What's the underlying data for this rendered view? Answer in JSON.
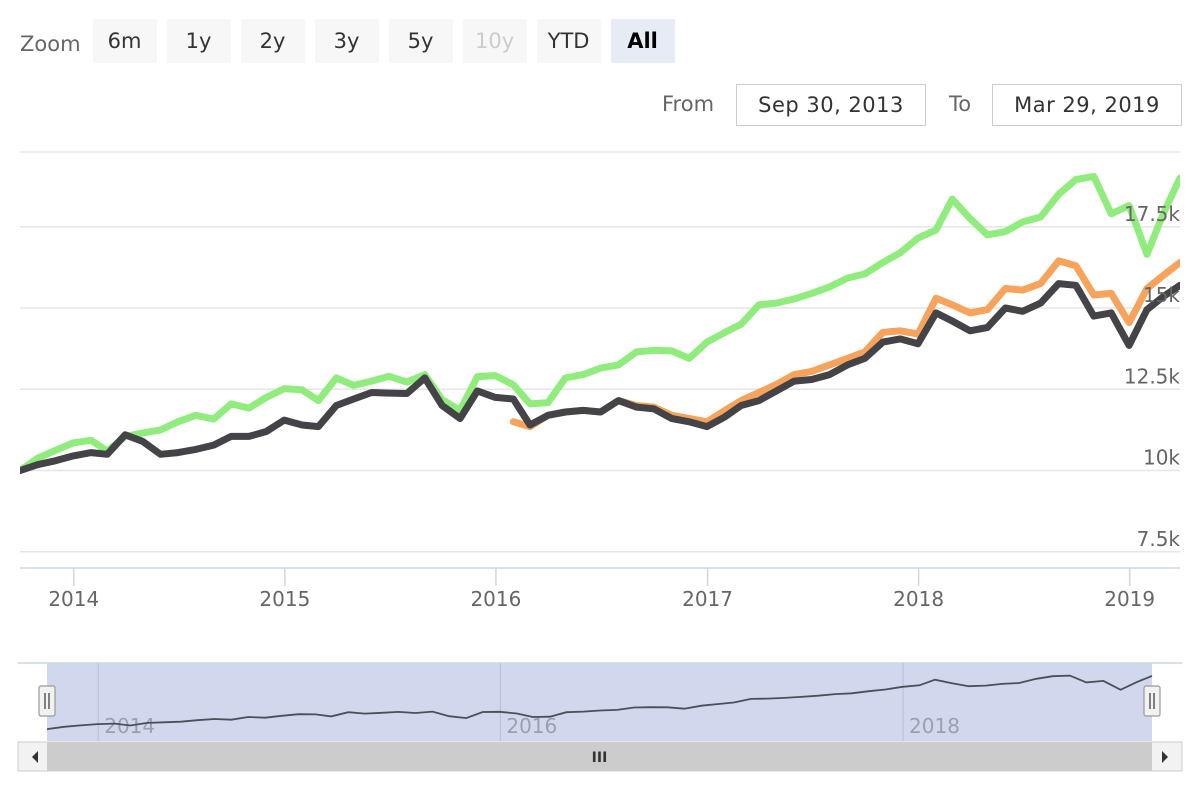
{
  "range_selector": {
    "zoom_label": "Zoom",
    "buttons": [
      {
        "label": "6m",
        "state": "normal"
      },
      {
        "label": "1y",
        "state": "normal"
      },
      {
        "label": "2y",
        "state": "normal"
      },
      {
        "label": "3y",
        "state": "normal"
      },
      {
        "label": "5y",
        "state": "normal"
      },
      {
        "label": "10y",
        "state": "disabled"
      },
      {
        "label": "YTD",
        "state": "normal"
      },
      {
        "label": "All",
        "state": "selected"
      }
    ],
    "from_label": "From",
    "from_value": "Sep 30, 2013",
    "to_label": "To",
    "to_value": "Mar 29, 2019"
  },
  "navigator": {
    "labels": [
      "2014",
      "2016",
      "2018"
    ],
    "scrollbar_grip": "III"
  },
  "colors": {
    "green": "#90ed7d",
    "orange": "#f7a35c",
    "dark": "#434348",
    "grid": "#e6e6e6",
    "axis": "#ccd6eb",
    "nav_mask": "#ccd4eb",
    "nav_line": "#4a4f5a"
  },
  "chart_data": {
    "type": "line",
    "xlim": [
      "2013-09-30",
      "2019-03-29"
    ],
    "ylim": [
      7000,
      19800
    ],
    "y_ticks": [
      {
        "value": 7500,
        "label": "7.5k"
      },
      {
        "value": 10000,
        "label": "10k"
      },
      {
        "value": 12500,
        "label": "12.5k"
      },
      {
        "value": 15000,
        "label": "15k"
      },
      {
        "value": 17500,
        "label": "17.5k"
      }
    ],
    "x_ticks": [
      {
        "date": "2014-01-01",
        "label": "2014"
      },
      {
        "date": "2015-01-01",
        "label": "2015"
      },
      {
        "date": "2016-01-01",
        "label": "2016"
      },
      {
        "date": "2017-01-01",
        "label": "2017"
      },
      {
        "date": "2018-01-01",
        "label": "2018"
      },
      {
        "date": "2019-01-01",
        "label": "2019"
      }
    ],
    "grid": true,
    "series": [
      {
        "color": "#90ed7d",
        "points": [
          [
            "2013-09-30",
            10000
          ],
          [
            "2013-10-31",
            10380
          ],
          [
            "2013-11-30",
            10620
          ],
          [
            "2013-12-31",
            10850
          ],
          [
            "2014-01-31",
            10930
          ],
          [
            "2014-02-28",
            10600
          ],
          [
            "2014-03-31",
            11050
          ],
          [
            "2014-04-30",
            11150
          ],
          [
            "2014-05-31",
            11250
          ],
          [
            "2014-06-30",
            11500
          ],
          [
            "2014-07-31",
            11700
          ],
          [
            "2014-08-31",
            11580
          ],
          [
            "2014-09-30",
            12050
          ],
          [
            "2014-10-31",
            11920
          ],
          [
            "2014-11-30",
            12250
          ],
          [
            "2014-12-31",
            12520
          ],
          [
            "2015-01-31",
            12480
          ],
          [
            "2015-02-28",
            12150
          ],
          [
            "2015-03-31",
            12850
          ],
          [
            "2015-04-30",
            12620
          ],
          [
            "2015-05-31",
            12750
          ],
          [
            "2015-06-30",
            12900
          ],
          [
            "2015-07-31",
            12720
          ],
          [
            "2015-08-31",
            12950
          ],
          [
            "2015-09-30",
            12180
          ],
          [
            "2015-10-31",
            11850
          ],
          [
            "2015-11-30",
            12890
          ],
          [
            "2015-12-31",
            12920
          ],
          [
            "2016-01-31",
            12640
          ],
          [
            "2016-02-29",
            12050
          ],
          [
            "2016-03-31",
            12090
          ],
          [
            "2016-04-30",
            12850
          ],
          [
            "2016-05-31",
            12950
          ],
          [
            "2016-06-30",
            13150
          ],
          [
            "2016-07-31",
            13250
          ],
          [
            "2016-08-31",
            13650
          ],
          [
            "2016-09-30",
            13700
          ],
          [
            "2016-10-31",
            13680
          ],
          [
            "2016-11-30",
            13450
          ],
          [
            "2016-12-31",
            13950
          ],
          [
            "2017-01-31",
            14250
          ],
          [
            "2017-02-28",
            14500
          ],
          [
            "2017-03-31",
            15100
          ],
          [
            "2017-04-30",
            15150
          ],
          [
            "2017-05-31",
            15280
          ],
          [
            "2017-06-30",
            15450
          ],
          [
            "2017-07-31",
            15650
          ],
          [
            "2017-08-31",
            15920
          ],
          [
            "2017-09-30",
            16050
          ],
          [
            "2017-10-31",
            16400
          ],
          [
            "2017-11-30",
            16700
          ],
          [
            "2017-12-31",
            17150
          ],
          [
            "2018-01-31",
            17400
          ],
          [
            "2018-02-28",
            18350
          ],
          [
            "2018-03-31",
            17750
          ],
          [
            "2018-04-30",
            17250
          ],
          [
            "2018-05-31",
            17350
          ],
          [
            "2018-06-30",
            17650
          ],
          [
            "2018-07-31",
            17800
          ],
          [
            "2018-08-31",
            18500
          ],
          [
            "2018-09-30",
            18950
          ],
          [
            "2018-10-31",
            19050
          ],
          [
            "2018-11-30",
            17900
          ],
          [
            "2018-12-31",
            18150
          ],
          [
            "2019-01-31",
            16650
          ],
          [
            "2019-02-28",
            17900
          ],
          [
            "2019-03-29",
            19000
          ]
        ]
      },
      {
        "color": "#f7a35c",
        "points": [
          [
            "2016-01-31",
            11500
          ],
          [
            "2016-02-29",
            11350
          ],
          [
            "2016-03-31",
            11700
          ],
          [
            "2016-04-30",
            11800
          ],
          [
            "2016-05-31",
            11850
          ],
          [
            "2016-06-30",
            11800
          ],
          [
            "2016-07-31",
            12150
          ],
          [
            "2016-08-31",
            12000
          ],
          [
            "2016-09-30",
            11950
          ],
          [
            "2016-10-31",
            11700
          ],
          [
            "2016-11-30",
            11600
          ],
          [
            "2016-12-31",
            11500
          ],
          [
            "2017-01-31",
            11850
          ],
          [
            "2017-02-28",
            12150
          ],
          [
            "2017-03-31",
            12400
          ],
          [
            "2017-04-30",
            12650
          ],
          [
            "2017-05-31",
            12950
          ],
          [
            "2017-06-30",
            13050
          ],
          [
            "2017-07-31",
            13250
          ],
          [
            "2017-08-31",
            13450
          ],
          [
            "2017-09-30",
            13650
          ],
          [
            "2017-10-31",
            14250
          ],
          [
            "2017-11-30",
            14300
          ],
          [
            "2017-12-31",
            14200
          ],
          [
            "2018-01-31",
            15300
          ],
          [
            "2018-02-28",
            15100
          ],
          [
            "2018-03-31",
            14850
          ],
          [
            "2018-04-30",
            14950
          ],
          [
            "2018-05-31",
            15600
          ],
          [
            "2018-06-30",
            15550
          ],
          [
            "2018-07-31",
            15750
          ],
          [
            "2018-08-31",
            16450
          ],
          [
            "2018-09-30",
            16300
          ],
          [
            "2018-10-31",
            15400
          ],
          [
            "2018-11-30",
            15450
          ],
          [
            "2018-12-31",
            14550
          ],
          [
            "2019-01-31",
            15600
          ],
          [
            "2019-02-28",
            16000
          ],
          [
            "2019-03-29",
            16400
          ]
        ]
      },
      {
        "color": "#434348",
        "points": [
          [
            "2013-09-30",
            10000
          ],
          [
            "2013-10-31",
            10180
          ],
          [
            "2013-11-30",
            10300
          ],
          [
            "2013-12-31",
            10450
          ],
          [
            "2014-01-31",
            10550
          ],
          [
            "2014-02-28",
            10500
          ],
          [
            "2014-03-31",
            11100
          ],
          [
            "2014-04-30",
            10900
          ],
          [
            "2014-05-31",
            10500
          ],
          [
            "2014-06-30",
            10550
          ],
          [
            "2014-07-31",
            10650
          ],
          [
            "2014-08-31",
            10780
          ],
          [
            "2014-09-30",
            11050
          ],
          [
            "2014-10-31",
            11050
          ],
          [
            "2014-11-30",
            11200
          ],
          [
            "2014-12-31",
            11550
          ],
          [
            "2015-01-31",
            11400
          ],
          [
            "2015-02-28",
            11350
          ],
          [
            "2015-03-31",
            12000
          ],
          [
            "2015-04-30",
            12200
          ],
          [
            "2015-05-31",
            12400
          ],
          [
            "2015-06-30",
            12380
          ],
          [
            "2015-07-31",
            12370
          ],
          [
            "2015-08-31",
            12850
          ],
          [
            "2015-09-30",
            12000
          ],
          [
            "2015-10-31",
            11600
          ],
          [
            "2015-11-30",
            12450
          ],
          [
            "2015-12-31",
            12250
          ],
          [
            "2016-01-31",
            12200
          ],
          [
            "2016-02-29",
            11400
          ],
          [
            "2016-03-31",
            11700
          ],
          [
            "2016-04-30",
            11800
          ],
          [
            "2016-05-31",
            11850
          ],
          [
            "2016-06-30",
            11800
          ],
          [
            "2016-07-31",
            12150
          ],
          [
            "2016-08-31",
            11950
          ],
          [
            "2016-09-30",
            11900
          ],
          [
            "2016-10-31",
            11600
          ],
          [
            "2016-11-30",
            11500
          ],
          [
            "2016-12-31",
            11350
          ],
          [
            "2017-01-31",
            11650
          ],
          [
            "2017-02-28",
            12000
          ],
          [
            "2017-03-31",
            12150
          ],
          [
            "2017-04-30",
            12450
          ],
          [
            "2017-05-31",
            12750
          ],
          [
            "2017-06-30",
            12800
          ],
          [
            "2017-07-31",
            12950
          ],
          [
            "2017-08-31",
            13250
          ],
          [
            "2017-09-30",
            13450
          ],
          [
            "2017-10-31",
            13950
          ],
          [
            "2017-11-30",
            14050
          ],
          [
            "2017-12-31",
            13900
          ],
          [
            "2018-01-31",
            14850
          ],
          [
            "2018-02-28",
            14600
          ],
          [
            "2018-03-31",
            14300
          ],
          [
            "2018-04-30",
            14400
          ],
          [
            "2018-05-31",
            15000
          ],
          [
            "2018-06-30",
            14900
          ],
          [
            "2018-07-31",
            15150
          ],
          [
            "2018-08-31",
            15750
          ],
          [
            "2018-09-30",
            15700
          ],
          [
            "2018-10-31",
            14750
          ],
          [
            "2018-11-30",
            14850
          ],
          [
            "2018-12-31",
            13850
          ],
          [
            "2019-01-31",
            14950
          ],
          [
            "2019-02-28",
            15350
          ],
          [
            "2019-03-29",
            15700
          ]
        ]
      }
    ]
  }
}
